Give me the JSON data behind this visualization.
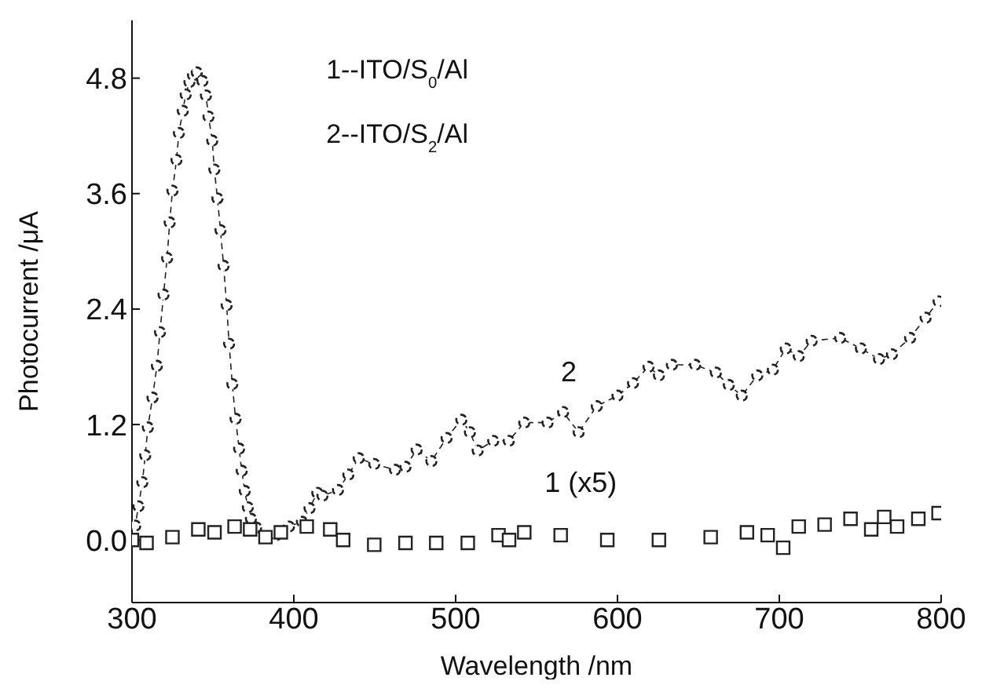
{
  "chart_data": {
    "type": "line",
    "xlabel": "Wavelength /nm",
    "ylabel": "Photocurrent /μA",
    "xlim": [
      300,
      800
    ],
    "ylim": [
      -0.65,
      5.4
    ],
    "xticks": [
      300,
      400,
      500,
      600,
      700,
      800
    ],
    "yticks": [
      {
        "value": 0,
        "label": "0.0"
      },
      {
        "value": 1.2,
        "label": "1.2"
      },
      {
        "value": 2.4,
        "label": "2.4"
      },
      {
        "value": 3.6,
        "label": "3.6"
      },
      {
        "value": 4.8,
        "label": "4.8"
      }
    ],
    "grid": false,
    "legend": false,
    "annotations": [
      "1--ITO/S$_{0}$/Al",
      "2--ITO/S$_{2}$/Al",
      "2",
      "1 (x5)"
    ],
    "series": [
      {
        "marker": "circle",
        "line_style": "dashed",
        "color": "#222222",
        "x": [
          300,
          302,
          304,
          306.4,
          308.2,
          309.8,
          312.7,
          315.4,
          317.3,
          319.5,
          321.7,
          323.3,
          325,
          327.5,
          329,
          331.4,
          333.2,
          335.5,
          337.7,
          340,
          343.5,
          345.7,
          347.3,
          349.6,
          350.9,
          352.8,
          354.7,
          356.6,
          358.5,
          360,
          362,
          364,
          366.2,
          367.8,
          369.7,
          371.6,
          373.5,
          376.8,
          382.5,
          389,
          397,
          405,
          409.7,
          414.5,
          417.7,
          427.3,
          433.7,
          440.1,
          449.7,
          462.5,
          469,
          475.9,
          485,
          494.4,
          503.5,
          508.8,
          513.6,
          523.2,
          532.8,
          542.4,
          556.8,
          566.4,
          576,
          587.2,
          600,
          609.6,
          619.2,
          625.6,
          633.6,
          648,
          660.8,
          668.8,
          676.8,
          686.4,
          696,
          704,
          712,
          720,
          737.6,
          750.4,
          761.6,
          769.6,
          780.8,
          790.4,
          798.4
        ],
        "values": [
          0.0,
          0.15,
          0.35,
          0.6,
          0.88,
          1.17,
          1.48,
          1.81,
          2.16,
          2.55,
          2.93,
          3.3,
          3.63,
          3.95,
          4.23,
          4.46,
          4.63,
          4.76,
          4.83,
          4.86,
          4.77,
          4.62,
          4.4,
          4.15,
          3.85,
          3.55,
          3.22,
          2.85,
          2.44,
          2.04,
          1.62,
          1.26,
          0.95,
          0.72,
          0.51,
          0.34,
          0.22,
          0.13,
          0.02,
          0.05,
          0.14,
          0.19,
          0.33,
          0.49,
          0.46,
          0.52,
          0.68,
          0.85,
          0.79,
          0.73,
          0.76,
          0.94,
          0.82,
          1.06,
          1.25,
          1.12,
          0.93,
          1.03,
          1.03,
          1.22,
          1.22,
          1.33,
          1.12,
          1.39,
          1.5,
          1.63,
          1.8,
          1.71,
          1.82,
          1.82,
          1.74,
          1.61,
          1.5,
          1.71,
          1.77,
          1.99,
          1.91,
          2.07,
          2.1,
          1.99,
          1.88,
          1.93,
          2.1,
          2.31,
          2.48
        ]
      },
      {
        "type": "scatter",
        "marker": "square",
        "color": "#222222",
        "x": [
          300,
          309,
          325,
          341,
          351,
          363.4,
          373,
          382.5,
          392,
          408,
          422.5,
          430.5,
          449.7,
          469,
          488,
          507.5,
          526.5,
          533,
          542.4,
          564.9,
          593.7,
          625.6,
          657.6,
          680,
          692.8,
          702.4,
          712,
          728,
          744,
          756.8,
          764.8,
          772.8,
          785.9,
          798.4
        ],
        "values": [
          0.0,
          -0.03,
          0.03,
          0.11,
          0.08,
          0.14,
          0.11,
          0.03,
          0.08,
          0.14,
          0.11,
          0.0,
          -0.05,
          -0.03,
          -0.03,
          -0.03,
          0.05,
          0.0,
          0.08,
          0.05,
          0.0,
          0.0,
          0.03,
          0.08,
          0.05,
          -0.08,
          0.14,
          0.16,
          0.22,
          0.11,
          0.24,
          0.14,
          0.22,
          0.28
        ]
      }
    ]
  }
}
